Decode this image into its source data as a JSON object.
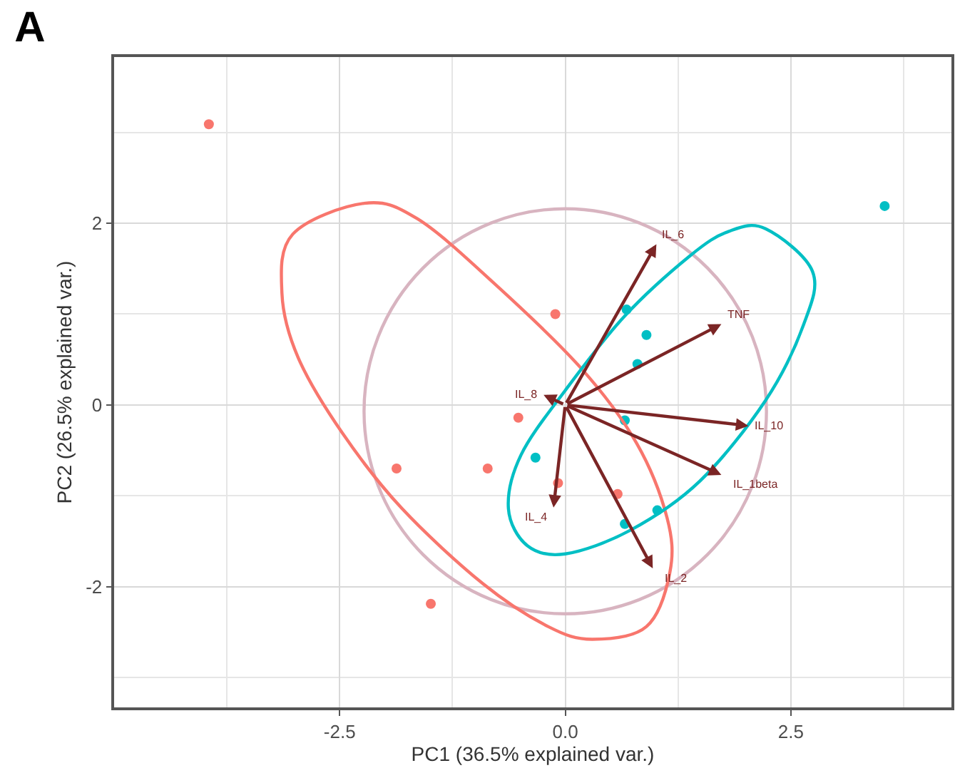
{
  "chart_data": {
    "type": "scatter",
    "title": "A",
    "xlabel": "PC1 (36.5% explained var.)",
    "ylabel": "PC2 (26.5% explained var.)",
    "xlim": [
      -5.0,
      4.28
    ],
    "ylim": [
      -3.33,
      3.83
    ],
    "xticks": [
      {
        "value": -2.5,
        "label": "-2.5"
      },
      {
        "value": 0,
        "label": "0.0"
      },
      {
        "value": 2.5,
        "label": "2.5"
      }
    ],
    "yticks": [
      -2,
      0,
      2
    ],
    "grid": true,
    "marker": "circle",
    "series": [
      {
        "color": "#f8766d",
        "x": [
          -3.95,
          -0.11,
          -0.52,
          -1.87,
          -0.86,
          -0.08,
          0.58,
          -1.49
        ],
        "values": [
          3.09,
          1.0,
          -0.14,
          -0.7,
          -0.7,
          -0.86,
          -0.98,
          -2.19
        ]
      },
      {
        "color": "#00bfc4",
        "x": [
          3.54,
          0.68,
          0.9,
          0.8,
          0.66,
          -0.33,
          1.02,
          0.66
        ],
        "values": [
          2.19,
          1.05,
          0.77,
          0.45,
          -0.17,
          -0.58,
          -1.16,
          -1.31
        ]
      }
    ],
    "annotations": [
      "IL_6",
      "TNF",
      "IL_8",
      "IL_10",
      "IL_1beta",
      "IL_4",
      "IL_2"
    ]
  }
}
